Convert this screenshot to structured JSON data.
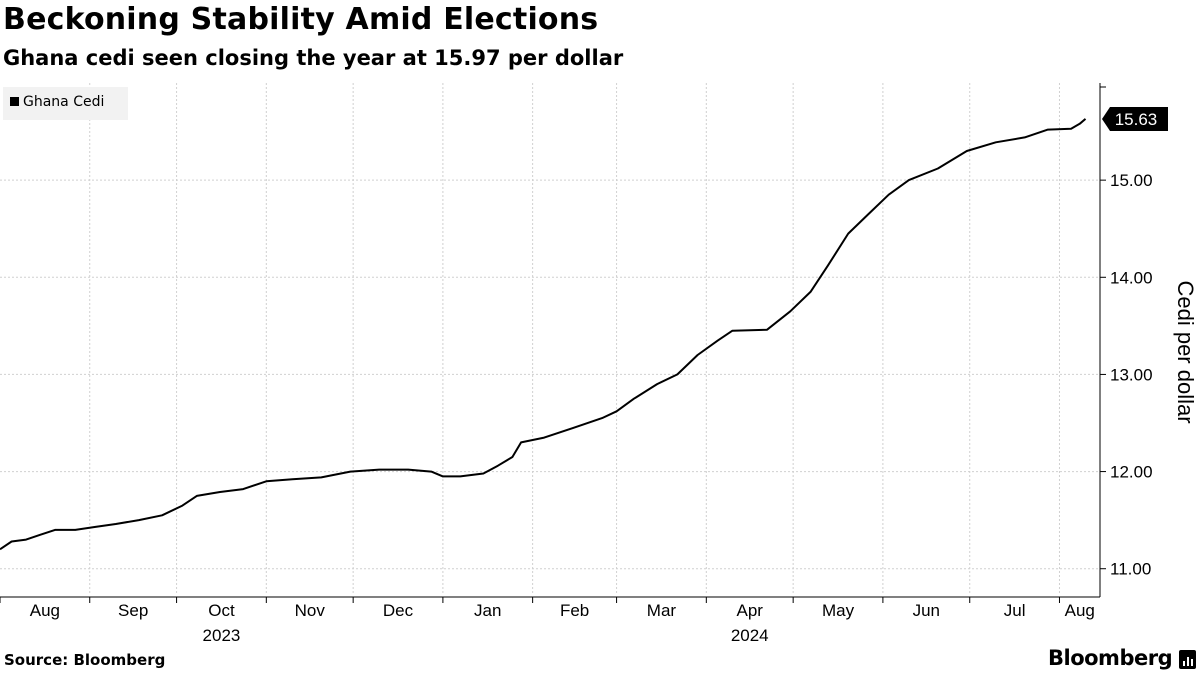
{
  "header": {
    "title": "Beckoning Stability Amid Elections",
    "subtitle": "Ghana cedi seen closing the year at 15.97 per dollar"
  },
  "footer": {
    "source": "Source: Bloomberg",
    "brand": "Bloomberg"
  },
  "chart_data": {
    "type": "line",
    "ylabel": "Cedi per dollar",
    "ylim": [
      10.75,
      16.0
    ],
    "yticks": [
      11.0,
      12.0,
      13.0,
      14.0,
      15.0
    ],
    "ytick_labels": [
      "11.00",
      "12.00",
      "13.00",
      "14.00",
      "15.00"
    ],
    "x_months": [
      "Aug",
      "Sep",
      "Oct",
      "Nov",
      "Dec",
      "Jan",
      "Feb",
      "Mar",
      "Apr",
      "May",
      "Jun",
      "Jul",
      "Aug"
    ],
    "x_years": [
      {
        "label": "2023",
        "month_index": 2
      },
      {
        "label": "2024",
        "month_index": 8
      }
    ],
    "legend": {
      "position": "top-left",
      "entries": [
        "Ghana Cedi"
      ]
    },
    "last_value_label": "15.63",
    "colors": {
      "line": "#000000",
      "grid": "#d0d0d0"
    },
    "series": [
      {
        "name": "Ghana Cedi",
        "points": [
          [
            "2023-08-01",
            11.2
          ],
          [
            "2023-08-05",
            11.28
          ],
          [
            "2023-08-10",
            11.3
          ],
          [
            "2023-08-15",
            11.35
          ],
          [
            "2023-08-20",
            11.4
          ],
          [
            "2023-08-27",
            11.4
          ],
          [
            "2023-09-03",
            11.43
          ],
          [
            "2023-09-10",
            11.46
          ],
          [
            "2023-09-18",
            11.5
          ],
          [
            "2023-09-26",
            11.55
          ],
          [
            "2023-10-03",
            11.65
          ],
          [
            "2023-10-08",
            11.75
          ],
          [
            "2023-10-16",
            11.79
          ],
          [
            "2023-10-24",
            11.82
          ],
          [
            "2023-11-01",
            11.9
          ],
          [
            "2023-11-10",
            11.92
          ],
          [
            "2023-11-20",
            11.94
          ],
          [
            "2023-11-30",
            12.0
          ],
          [
            "2023-12-10",
            12.02
          ],
          [
            "2023-12-20",
            12.02
          ],
          [
            "2023-12-28",
            12.0
          ],
          [
            "2024-01-01",
            11.95
          ],
          [
            "2024-01-07",
            11.95
          ],
          [
            "2024-01-15",
            11.98
          ],
          [
            "2024-01-20",
            12.06
          ],
          [
            "2024-01-25",
            12.15
          ],
          [
            "2024-01-28",
            12.3
          ],
          [
            "2024-02-05",
            12.35
          ],
          [
            "2024-02-15",
            12.45
          ],
          [
            "2024-02-25",
            12.55
          ],
          [
            "2024-03-01",
            12.62
          ],
          [
            "2024-03-07",
            12.75
          ],
          [
            "2024-03-15",
            12.9
          ],
          [
            "2024-03-22",
            13.0
          ],
          [
            "2024-03-29",
            13.2
          ],
          [
            "2024-04-05",
            13.35
          ],
          [
            "2024-04-10",
            13.45
          ],
          [
            "2024-04-22",
            13.46
          ],
          [
            "2024-04-30",
            13.65
          ],
          [
            "2024-05-07",
            13.85
          ],
          [
            "2024-05-13",
            14.12
          ],
          [
            "2024-05-20",
            14.45
          ],
          [
            "2024-05-27",
            14.65
          ],
          [
            "2024-06-03",
            14.85
          ],
          [
            "2024-06-10",
            15.0
          ],
          [
            "2024-06-20",
            15.12
          ],
          [
            "2024-06-30",
            15.3
          ],
          [
            "2024-07-10",
            15.39
          ],
          [
            "2024-07-20",
            15.44
          ],
          [
            "2024-07-28",
            15.52
          ],
          [
            "2024-08-05",
            15.53
          ],
          [
            "2024-08-08",
            15.58
          ],
          [
            "2024-08-10",
            15.63
          ]
        ]
      }
    ]
  }
}
